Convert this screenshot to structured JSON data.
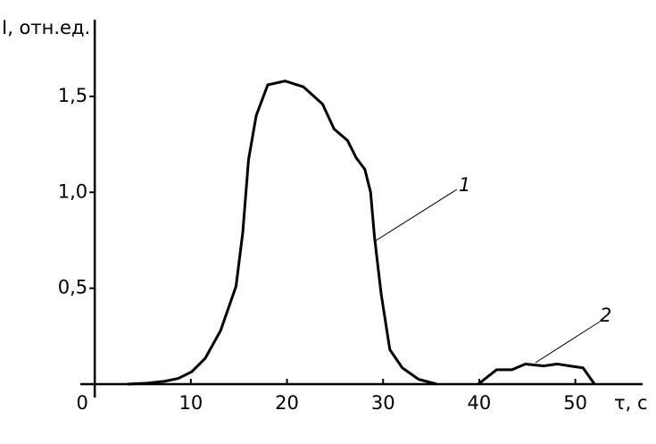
{
  "chart_data": {
    "type": "line",
    "y_label": "I, отн.ед.",
    "x_label": "τ, с",
    "xlim": [
      -1.5,
      57
    ],
    "ylim": [
      0,
      1.9
    ],
    "xticks": [
      0,
      10,
      20,
      30,
      40,
      50
    ],
    "yticks": [
      {
        "value": 0.5,
        "label": "0,5"
      },
      {
        "value": 1.0,
        "label": "1,0"
      },
      {
        "value": 1.5,
        "label": "1,5"
      }
    ],
    "grid": false,
    "series": [
      {
        "name": "1",
        "color": "#000000",
        "x": [
          3.4,
          5.5,
          7.3,
          8.7,
          10.1,
          11.5,
          13.1,
          14.7,
          15.4,
          16.0,
          16.8,
          18.0,
          19.8,
          21.7,
          23.7,
          24.9,
          26.3,
          27.2,
          28.1,
          28.7,
          29.1,
          29.8,
          30.7,
          32.0,
          33.7,
          35.6
        ],
        "values": [
          0,
          0.005,
          0.015,
          0.03,
          0.065,
          0.135,
          0.28,
          0.51,
          0.79,
          1.17,
          1.4,
          1.56,
          1.58,
          1.55,
          1.46,
          1.33,
          1.27,
          1.18,
          1.12,
          1.0,
          0.77,
          0.47,
          0.18,
          0.085,
          0.025,
          0
        ]
      },
      {
        "name": "2",
        "color": "#000000",
        "x": [
          39.9,
          41.8,
          43.4,
          44.8,
          46.7,
          48.1,
          49.4,
          50.8,
          52.0
        ],
        "values": [
          0,
          0.075,
          0.075,
          0.105,
          0.095,
          0.105,
          0.095,
          0.085,
          0
        ]
      }
    ]
  }
}
